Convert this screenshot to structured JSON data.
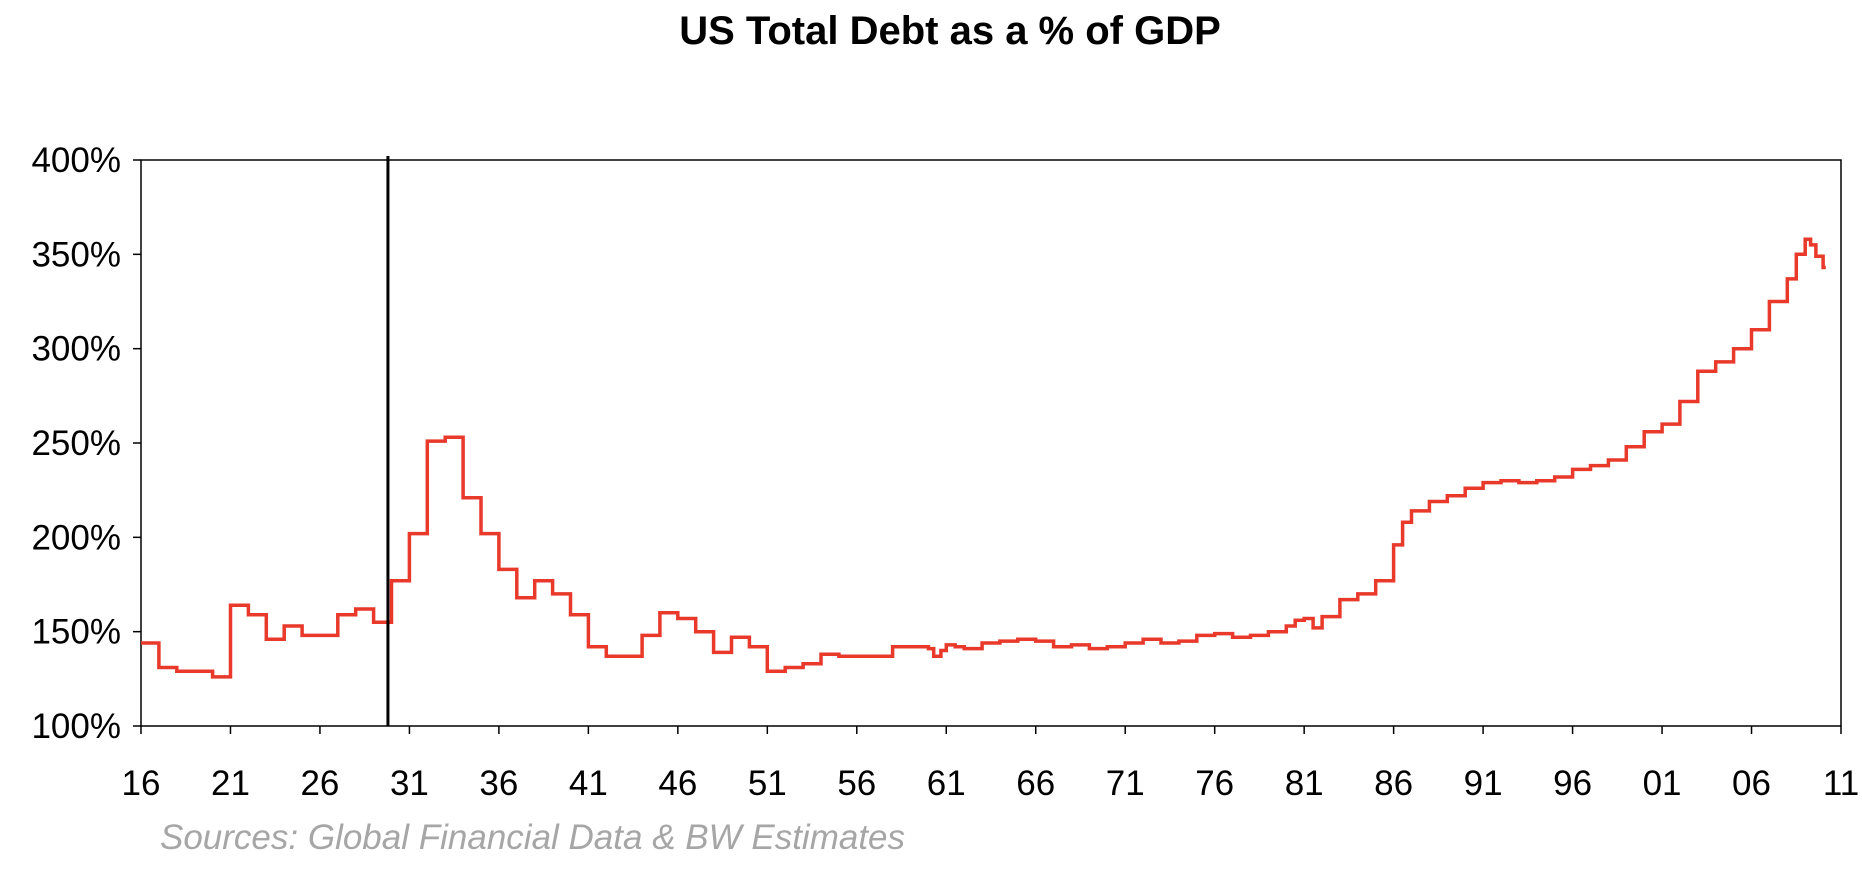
{
  "chart_data": {
    "type": "line",
    "title": "US Total Debt as a % of GDP",
    "source": "Sources: Global Financial Data & BW Estimates",
    "xlabel": "",
    "ylabel": "",
    "xlim": [
      1916,
      2011
    ],
    "ylim": [
      100,
      400
    ],
    "x_ticks": [
      1916,
      1921,
      1926,
      1931,
      1936,
      1941,
      1946,
      1951,
      1956,
      1961,
      1966,
      1971,
      1976,
      1981,
      1986,
      1991,
      1996,
      2001,
      2006,
      2011
    ],
    "x_tick_labels": [
      "16",
      "21",
      "26",
      "31",
      "36",
      "41",
      "46",
      "51",
      "56",
      "61",
      "66",
      "71",
      "76",
      "81",
      "86",
      "91",
      "96",
      "01",
      "06",
      "11"
    ],
    "y_ticks": [
      100,
      150,
      200,
      250,
      300,
      350,
      400
    ],
    "y_tick_labels": [
      "100%",
      "150%",
      "200%",
      "250%",
      "300%",
      "350%",
      "400%"
    ],
    "grid": false,
    "legend": "none",
    "vertical_marker_x": 1929.8,
    "colors": {
      "line": "#e8392b",
      "marker": "#000000",
      "axis": "#000000",
      "source": "#a6a6a6"
    },
    "series": [
      {
        "step": true,
        "x": [
          1916.0,
          1917.0,
          1918.0,
          1920.0,
          1921.0,
          1922.0,
          1923.0,
          1924.0,
          1925.0,
          1927.0,
          1928.0,
          1929.0,
          1930.0,
          1931.0,
          1932.0,
          1933.0,
          1934.0,
          1935.0,
          1936.0,
          1937.0,
          1938.0,
          1939.0,
          1940.0,
          1941.0,
          1942.0,
          1944.0,
          1945.0,
          1946.0,
          1947.0,
          1948.0,
          1949.0,
          1950.0,
          1951.0,
          1952.0,
          1953.0,
          1954.0,
          1955.0,
          1957.0,
          1958.0,
          1960.0,
          1960.3,
          1960.7,
          1961.0,
          1961.5,
          1962.0,
          1963.0,
          1964.0,
          1965.0,
          1966.0,
          1967.0,
          1968.0,
          1969.0,
          1970.0,
          1971.0,
          1972.0,
          1973.0,
          1974.0,
          1975.0,
          1976.0,
          1977.0,
          1978.0,
          1979.0,
          1980.0,
          1980.5,
          1981.0,
          1981.5,
          1982.0,
          1983.0,
          1984.0,
          1985.0,
          1986.0,
          1986.5,
          1987.0,
          1988.0,
          1989.0,
          1990.0,
          1991.0,
          1992.0,
          1993.0,
          1994.0,
          1995.0,
          1996.0,
          1997.0,
          1998.0,
          1999.0,
          2000.0,
          2001.0,
          2002.0,
          2003.0,
          2004.0,
          2005.0,
          2006.0,
          2007.0,
          2008.0,
          2008.5,
          2009.0,
          2009.3,
          2009.6,
          2010.0
        ],
        "values": [
          144,
          131,
          129,
          126,
          164,
          159,
          146,
          153,
          148,
          159,
          162,
          155,
          177,
          202,
          251,
          253,
          221,
          202,
          183,
          168,
          177,
          170,
          159,
          142,
          137,
          148,
          160,
          157,
          150,
          139,
          147,
          142,
          129,
          131,
          133,
          138,
          137,
          137,
          142,
          141,
          137,
          140,
          143,
          142,
          141,
          144,
          145,
          146,
          145,
          142,
          143,
          141,
          142,
          144,
          146,
          144,
          145,
          148,
          149,
          147,
          148,
          150,
          153,
          156,
          157,
          152,
          158,
          167,
          170,
          177,
          196,
          208,
          214,
          219,
          222,
          226,
          229,
          230,
          229,
          230,
          232,
          236,
          238,
          241,
          248,
          256,
          260,
          272,
          288,
          293,
          300,
          310,
          325,
          337,
          350,
          358,
          355,
          349,
          343
        ]
      }
    ]
  }
}
